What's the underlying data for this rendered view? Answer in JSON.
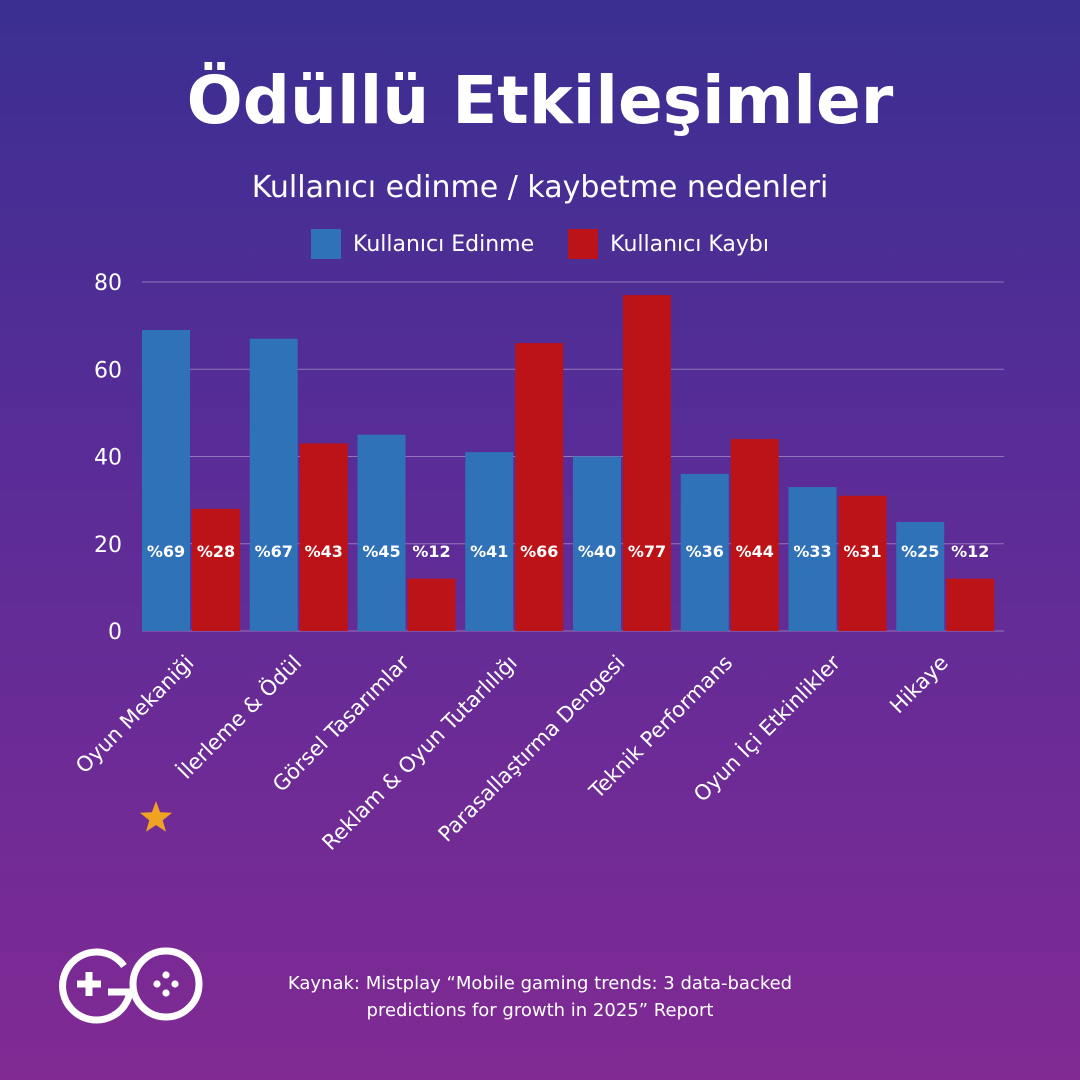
{
  "header": {
    "title": "Ödüllü Etkileşimler",
    "subtitle": "Kullanıcı edinme / kaybetme nedenleri"
  },
  "colors": {
    "acquisition": "#2f72b8",
    "loss": "#bb1318",
    "star": "#f0a323"
  },
  "chart_data": {
    "type": "bar",
    "categories": [
      "Oyun Mekaniği",
      "İlerleme & Ödül",
      "Görsel Tasarımlar",
      "Reklam & Oyun Tutarlılığı",
      "Parasallaştırma Dengesi",
      "Teknik Performans",
      "Oyun İçi Etkinlikler",
      "Hikaye"
    ],
    "series": [
      {
        "name": "Kullanıcı Edinme",
        "values": [
          69,
          67,
          45,
          41,
          40,
          36,
          33,
          25
        ],
        "labels": [
          "%69",
          "%67",
          "%45",
          "%41",
          "%40",
          "%36",
          "%33",
          "%25"
        ]
      },
      {
        "name": "Kullanıcı Kaybı",
        "values": [
          28,
          43,
          12,
          66,
          77,
          44,
          31,
          12
        ],
        "labels": [
          "%28",
          "%43",
          "%12",
          "%66",
          "%77",
          "%44",
          "%31",
          "%12"
        ]
      }
    ],
    "ylim": [
      0,
      80
    ],
    "yticks": [
      "0",
      "20",
      "40",
      "60",
      "80"
    ],
    "grid": true,
    "legend_position": "top-center",
    "highlighted_category": "İlerleme & Ödül"
  },
  "footer": {
    "source_line1": "Kaynak: Mistplay “Mobile gaming trends: 3 data-backed",
    "source_line2": "predictions for growth in 2025” Report",
    "logo_icon": "go-gamepad-logo"
  }
}
